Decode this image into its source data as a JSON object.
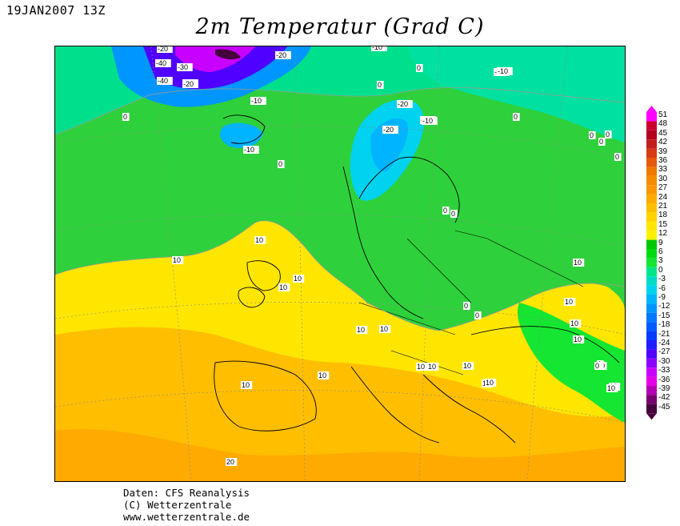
{
  "header": {
    "date": "19JAN2007 13Z",
    "title": "2m Temperatur (Grad C)"
  },
  "legend": {
    "ticks": [
      "51",
      "48",
      "45",
      "42",
      "39",
      "36",
      "33",
      "30",
      "27",
      "24",
      "21",
      "18",
      "15",
      "12",
      "9",
      "6",
      "3",
      "0",
      "-3",
      "-6",
      "-9",
      "-12",
      "-15",
      "-18",
      "-21",
      "-24",
      "-27",
      "-30",
      "-33",
      "-36",
      "-39",
      "-42",
      "-45"
    ],
    "colors": [
      "#ff00ff",
      "#c8002d",
      "#b4001e",
      "#c41e1e",
      "#d73c14",
      "#e65a0a",
      "#f07800",
      "#f58c00",
      "#fa9600",
      "#ffaa00",
      "#ffbe00",
      "#ffd200",
      "#ffe600",
      "#fff000",
      "#00c800",
      "#00dc14",
      "#14e632",
      "#00e68c",
      "#00dcc8",
      "#00d2f0",
      "#00b4ff",
      "#0096ff",
      "#0078ff",
      "#005aff",
      "#003cff",
      "#1e1eff",
      "#5000ff",
      "#8c00ff",
      "#c800ff",
      "#e600e6",
      "#b400b4",
      "#78006e",
      "#46003c"
    ]
  },
  "map_labels": [
    "-20",
    "-40",
    "-30",
    "-20",
    "-40",
    "-20",
    "-20",
    "-10",
    "-10",
    "-10",
    "-10",
    "-20",
    "-10",
    "-20",
    "-10",
    "0",
    "0",
    "0",
    "0",
    "0",
    "-10",
    "0",
    "0",
    "0",
    "0",
    "0",
    "0",
    "10",
    "10",
    "10",
    "10",
    "10",
    "10",
    "10",
    "10",
    "10",
    "10",
    "10",
    "10",
    "10",
    "10",
    "10",
    "10",
    "10",
    "10",
    "0",
    "0",
    "20",
    "0",
    "0",
    "0",
    "10"
  ],
  "footer": {
    "line1": "Daten: CFS Reanalysis",
    "line2": "(C) Wetterzentrale",
    "line3": "www.wetterzentrale.de"
  }
}
